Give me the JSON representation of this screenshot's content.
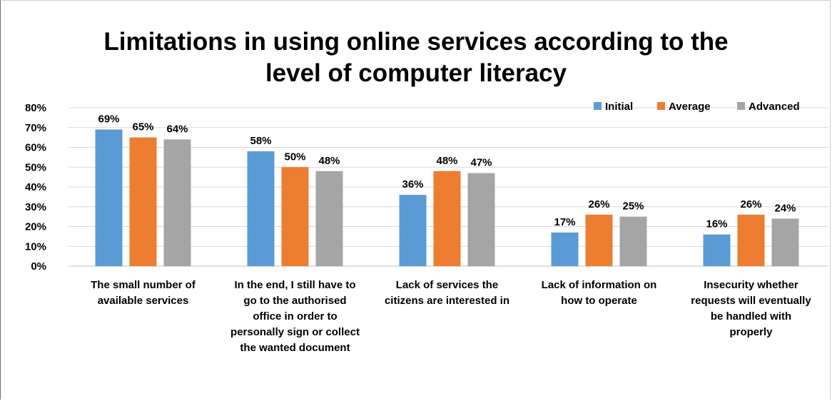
{
  "chart_data": {
    "type": "bar",
    "title": "Limitations in using online services according to the\nlevel of computer literacy",
    "categories": [
      [
        "The small number of",
        "available services"
      ],
      [
        "In the end, I still have to",
        "go to the authorised",
        "office in order to",
        "personally sign or collect",
        "the wanted document"
      ],
      [
        "Lack of services the",
        "citizens are interested in"
      ],
      [
        "Lack of information on",
        "how to operate"
      ],
      [
        "Insecurity whether",
        "requests will eventually",
        "be handled with",
        "properly"
      ]
    ],
    "series": [
      {
        "name": "Initial",
        "color": "#5b9bd5",
        "values": [
          69,
          58,
          36,
          17,
          16
        ]
      },
      {
        "name": "Average",
        "color": "#ed7d31",
        "values": [
          65,
          50,
          48,
          26,
          26
        ]
      },
      {
        "name": "Advanced",
        "color": "#a5a5a5",
        "values": [
          64,
          48,
          47,
          25,
          24
        ]
      }
    ],
    "ylim": [
      0,
      80
    ],
    "yticks": [
      "0%",
      "10%",
      "20%",
      "30%",
      "40%",
      "50%",
      "60%",
      "70%",
      "80%"
    ],
    "value_suffix": "%",
    "gridlines": true,
    "legend_position": "top-right"
  }
}
